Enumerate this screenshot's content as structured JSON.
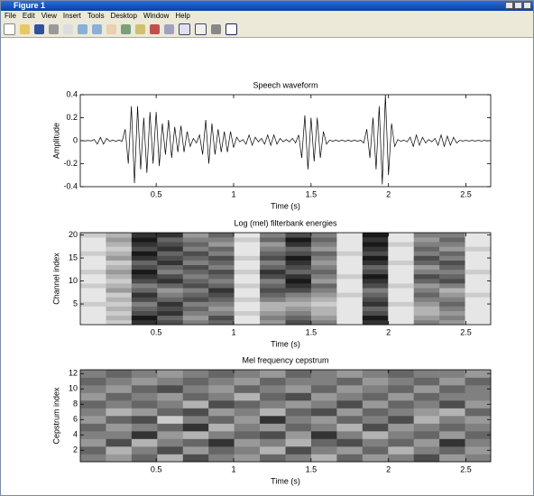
{
  "window": {
    "title": "Figure 1",
    "menu": [
      "File",
      "Edit",
      "View",
      "Insert",
      "Tools",
      "Desktop",
      "Window",
      "Help"
    ]
  },
  "chart_data": [
    {
      "type": "line",
      "title": "Speech waveform",
      "xlabel": "Time (s)",
      "ylabel": "Amplitude",
      "xlim": [
        0.01,
        2.66
      ],
      "xticks": [
        0.5,
        1,
        1.5,
        2,
        2.5
      ],
      "ylim": [
        -0.4,
        0.4
      ],
      "yticks": [
        -0.4,
        -0.2,
        0,
        0.2,
        0.4
      ],
      "color": "#000000",
      "x": [
        0.02,
        0.04,
        0.06,
        0.08,
        0.1,
        0.12,
        0.14,
        0.16,
        0.18,
        0.2,
        0.22,
        0.24,
        0.26,
        0.28,
        0.3,
        0.32,
        0.34,
        0.36,
        0.38,
        0.4,
        0.42,
        0.44,
        0.46,
        0.48,
        0.5,
        0.52,
        0.54,
        0.56,
        0.58,
        0.6,
        0.62,
        0.64,
        0.66,
        0.68,
        0.7,
        0.72,
        0.74,
        0.76,
        0.78,
        0.8,
        0.82,
        0.84,
        0.86,
        0.88,
        0.9,
        0.92,
        0.94,
        0.96,
        0.98,
        1.0,
        1.02,
        1.04,
        1.06,
        1.08,
        1.1,
        1.12,
        1.14,
        1.16,
        1.18,
        1.2,
        1.22,
        1.24,
        1.26,
        1.28,
        1.3,
        1.32,
        1.34,
        1.36,
        1.38,
        1.4,
        1.42,
        1.44,
        1.46,
        1.48,
        1.5,
        1.52,
        1.54,
        1.56,
        1.58,
        1.6,
        1.62,
        1.64,
        1.66,
        1.68,
        1.7,
        1.72,
        1.74,
        1.76,
        1.78,
        1.8,
        1.82,
        1.84,
        1.86,
        1.88,
        1.9,
        1.92,
        1.94,
        1.96,
        1.98,
        2.0,
        2.02,
        2.04,
        2.06,
        2.08,
        2.1,
        2.12,
        2.14,
        2.16,
        2.18,
        2.2,
        2.22,
        2.24,
        2.26,
        2.28,
        2.3,
        2.32,
        2.34,
        2.36,
        2.38,
        2.4,
        2.42,
        2.44,
        2.46,
        2.48,
        2.5,
        2.52,
        2.54,
        2.56,
        2.58,
        2.6,
        2.62,
        2.64
      ],
      "values": [
        0.002,
        -0.002,
        0.002,
        -0.002,
        0.01,
        -0.03,
        0.03,
        -0.03,
        0.02,
        -0.005,
        0.005,
        -0.005,
        0.005,
        -0.005,
        0.1,
        -0.2,
        0.3,
        -0.37,
        0.3,
        -0.25,
        0.2,
        -0.28,
        0.25,
        -0.2,
        0.25,
        -0.22,
        0.15,
        -0.12,
        0.18,
        -0.15,
        0.12,
        -0.1,
        0.13,
        -0.1,
        0.08,
        -0.05,
        0.02,
        -0.02,
        0.05,
        -0.12,
        0.18,
        -0.2,
        0.15,
        -0.12,
        0.1,
        -0.1,
        0.08,
        -0.1,
        0.08,
        -0.06,
        0.03,
        -0.01,
        0.01,
        -0.03,
        0.05,
        -0.04,
        0.03,
        -0.01,
        0.02,
        -0.03,
        0.05,
        -0.04,
        0.05,
        -0.03,
        0.02,
        -0.01,
        0.01,
        -0.01,
        0.02,
        -0.02,
        0.05,
        -0.15,
        0.22,
        -0.25,
        0.2,
        -0.18,
        0.2,
        -0.15,
        0.08,
        -0.03,
        0.005,
        -0.005,
        0.005,
        -0.005,
        0.005,
        -0.005,
        0.005,
        -0.005,
        0.005,
        -0.005,
        0.005,
        -0.02,
        0.1,
        -0.15,
        0.2,
        -0.25,
        0.3,
        -0.38,
        0.4,
        -0.3,
        0.15,
        -0.05,
        0.01,
        -0.005,
        0.005,
        -0.01,
        0.03,
        -0.05,
        0.05,
        -0.04,
        0.03,
        -0.02,
        0.01,
        -0.01,
        0.02,
        -0.04,
        0.05,
        -0.05,
        0.04,
        -0.04,
        0.03,
        -0.02,
        0.003,
        -0.003,
        0.003,
        -0.003,
        0.003,
        -0.003,
        0.003,
        -0.003,
        0.003,
        -0.003
      ]
    },
    {
      "type": "heatmap",
      "title": "Log (mel) filterbank energies",
      "xlabel": "Time (s)",
      "ylabel": "Channel index",
      "xlim": [
        0.01,
        2.66
      ],
      "xticks": [
        0.5,
        1,
        1.5,
        2,
        2.5
      ],
      "ylim": [
        0.5,
        20.5
      ],
      "yticks": [
        5,
        10,
        15,
        20
      ],
      "z": [
        [
          0.1,
          0.2,
          0.8,
          0.7,
          0.5,
          0.6,
          0.1,
          0.4,
          0.7,
          0.5,
          0.1,
          0.8,
          0.1,
          0.5,
          0.4,
          0.1
        ],
        [
          0.1,
          0.3,
          0.9,
          0.6,
          0.4,
          0.7,
          0.1,
          0.5,
          0.6,
          0.4,
          0.1,
          0.9,
          0.1,
          0.4,
          0.5,
          0.1
        ],
        [
          0.1,
          0.2,
          0.7,
          0.8,
          0.5,
          0.5,
          0.2,
          0.4,
          0.5,
          0.3,
          0.1,
          0.7,
          0.1,
          0.3,
          0.4,
          0.1
        ],
        [
          0.1,
          0.3,
          0.6,
          0.7,
          0.6,
          0.4,
          0.1,
          0.3,
          0.4,
          0.3,
          0.1,
          0.6,
          0.1,
          0.3,
          0.5,
          0.1
        ],
        [
          0.2,
          0.2,
          0.5,
          0.8,
          0.5,
          0.5,
          0.1,
          0.3,
          0.3,
          0.2,
          0.1,
          0.8,
          0.2,
          0.4,
          0.6,
          0.1
        ],
        [
          0.1,
          0.3,
          0.7,
          0.6,
          0.7,
          0.6,
          0.2,
          0.5,
          0.4,
          0.3,
          0.1,
          0.7,
          0.1,
          0.5,
          0.5,
          0.1
        ],
        [
          0.1,
          0.2,
          0.8,
          0.5,
          0.6,
          0.7,
          0.1,
          0.6,
          0.5,
          0.4,
          0.2,
          0.6,
          0.1,
          0.6,
          0.4,
          0.2
        ],
        [
          0.1,
          0.4,
          0.6,
          0.4,
          0.5,
          0.8,
          0.1,
          0.7,
          0.7,
          0.5,
          0.1,
          0.5,
          0.1,
          0.5,
          0.3,
          0.1
        ],
        [
          0.2,
          0.3,
          0.5,
          0.6,
          0.7,
          0.6,
          0.2,
          0.6,
          0.8,
          0.6,
          0.1,
          0.7,
          0.2,
          0.4,
          0.5,
          0.1
        ],
        [
          0.1,
          0.2,
          0.7,
          0.8,
          0.6,
          0.5,
          0.1,
          0.5,
          0.9,
          0.4,
          0.1,
          0.8,
          0.1,
          0.6,
          0.7,
          0.1
        ],
        [
          0.1,
          0.3,
          0.8,
          0.7,
          0.5,
          0.6,
          0.1,
          0.7,
          0.8,
          0.5,
          0.2,
          0.9,
          0.1,
          0.7,
          0.6,
          0.1
        ],
        [
          0.2,
          0.4,
          0.9,
          0.5,
          0.6,
          0.7,
          0.2,
          0.8,
          0.6,
          0.6,
          0.1,
          0.7,
          0.1,
          0.5,
          0.5,
          0.2
        ],
        [
          0.1,
          0.3,
          0.7,
          0.6,
          0.7,
          0.5,
          0.1,
          0.6,
          0.7,
          0.5,
          0.1,
          0.6,
          0.1,
          0.4,
          0.6,
          0.1
        ],
        [
          0.1,
          0.2,
          0.6,
          0.8,
          0.5,
          0.6,
          0.1,
          0.5,
          0.8,
          0.4,
          0.1,
          0.8,
          0.2,
          0.6,
          0.7,
          0.1
        ],
        [
          0.1,
          0.4,
          0.8,
          0.7,
          0.6,
          0.7,
          0.2,
          0.7,
          0.9,
          0.5,
          0.1,
          0.9,
          0.1,
          0.7,
          0.5,
          0.1
        ],
        [
          0.2,
          0.3,
          0.9,
          0.6,
          0.7,
          0.5,
          0.1,
          0.6,
          0.7,
          0.6,
          0.2,
          0.7,
          0.1,
          0.5,
          0.6,
          0.1
        ],
        [
          0.1,
          0.2,
          0.7,
          0.8,
          0.5,
          0.6,
          0.1,
          0.5,
          0.6,
          0.4,
          0.1,
          0.8,
          0.1,
          0.6,
          0.4,
          0.2
        ],
        [
          0.1,
          0.3,
          0.8,
          0.7,
          0.6,
          0.4,
          0.1,
          0.4,
          0.8,
          0.5,
          0.1,
          0.9,
          0.2,
          0.5,
          0.5,
          0.1
        ],
        [
          0.1,
          0.4,
          0.9,
          0.6,
          0.5,
          0.5,
          0.2,
          0.6,
          0.9,
          0.6,
          0.1,
          0.8,
          0.1,
          0.4,
          0.6,
          0.1
        ],
        [
          0.2,
          0.3,
          0.8,
          0.8,
          0.4,
          0.6,
          0.1,
          0.5,
          0.7,
          0.5,
          0.1,
          0.9,
          0.1,
          0.5,
          0.5,
          0.1
        ]
      ]
    },
    {
      "type": "heatmap",
      "title": "Mel frequency cepstrum",
      "xlabel": "Time (s)",
      "ylabel": "Cepstrum index",
      "xlim": [
        0.01,
        2.66
      ],
      "xticks": [
        0.5,
        1,
        1.5,
        2,
        2.5
      ],
      "ylim": [
        0.5,
        12.5
      ],
      "yticks": [
        2,
        4,
        6,
        8,
        10,
        12
      ],
      "z": [
        [
          0.5,
          0.4,
          0.6,
          0.3,
          0.7,
          0.5,
          0.4,
          0.6,
          0.5,
          0.3,
          0.6,
          0.4,
          0.5,
          0.7,
          0.4,
          0.5
        ],
        [
          0.6,
          0.3,
          0.5,
          0.7,
          0.4,
          0.6,
          0.5,
          0.3,
          0.7,
          0.5,
          0.4,
          0.6,
          0.3,
          0.5,
          0.6,
          0.4
        ],
        [
          0.4,
          0.7,
          0.3,
          0.5,
          0.6,
          0.8,
          0.4,
          0.5,
          0.3,
          0.6,
          0.7,
          0.5,
          0.6,
          0.4,
          0.8,
          0.5
        ],
        [
          0.5,
          0.5,
          0.8,
          0.4,
          0.3,
          0.5,
          0.6,
          0.7,
          0.4,
          0.8,
          0.5,
          0.3,
          0.5,
          0.6,
          0.4,
          0.6
        ],
        [
          0.6,
          0.4,
          0.5,
          0.6,
          0.8,
          0.3,
          0.5,
          0.4,
          0.6,
          0.5,
          0.3,
          0.7,
          0.4,
          0.5,
          0.6,
          0.5
        ],
        [
          0.4,
          0.6,
          0.7,
          0.2,
          0.5,
          0.6,
          0.4,
          0.8,
          0.5,
          0.4,
          0.6,
          0.5,
          0.7,
          0.3,
          0.5,
          0.4
        ],
        [
          0.5,
          0.3,
          0.4,
          0.6,
          0.7,
          0.4,
          0.5,
          0.3,
          0.6,
          0.7,
          0.4,
          0.6,
          0.5,
          0.4,
          0.3,
          0.6
        ],
        [
          0.6,
          0.5,
          0.6,
          0.5,
          0.3,
          0.7,
          0.6,
          0.5,
          0.4,
          0.5,
          0.7,
          0.4,
          0.6,
          0.5,
          0.7,
          0.4
        ],
        [
          0.4,
          0.6,
          0.5,
          0.4,
          0.6,
          0.5,
          0.3,
          0.6,
          0.7,
          0.4,
          0.5,
          0.6,
          0.4,
          0.6,
          0.5,
          0.5
        ],
        [
          0.5,
          0.4,
          0.6,
          0.7,
          0.5,
          0.4,
          0.6,
          0.5,
          0.4,
          0.6,
          0.4,
          0.5,
          0.6,
          0.4,
          0.6,
          0.5
        ],
        [
          0.6,
          0.5,
          0.4,
          0.5,
          0.6,
          0.5,
          0.4,
          0.6,
          0.5,
          0.5,
          0.6,
          0.4,
          0.5,
          0.6,
          0.4,
          0.6
        ],
        [
          0.5,
          0.6,
          0.5,
          0.4,
          0.5,
          0.6,
          0.5,
          0.4,
          0.6,
          0.5,
          0.4,
          0.5,
          0.6,
          0.5,
          0.5,
          0.4
        ]
      ]
    }
  ]
}
